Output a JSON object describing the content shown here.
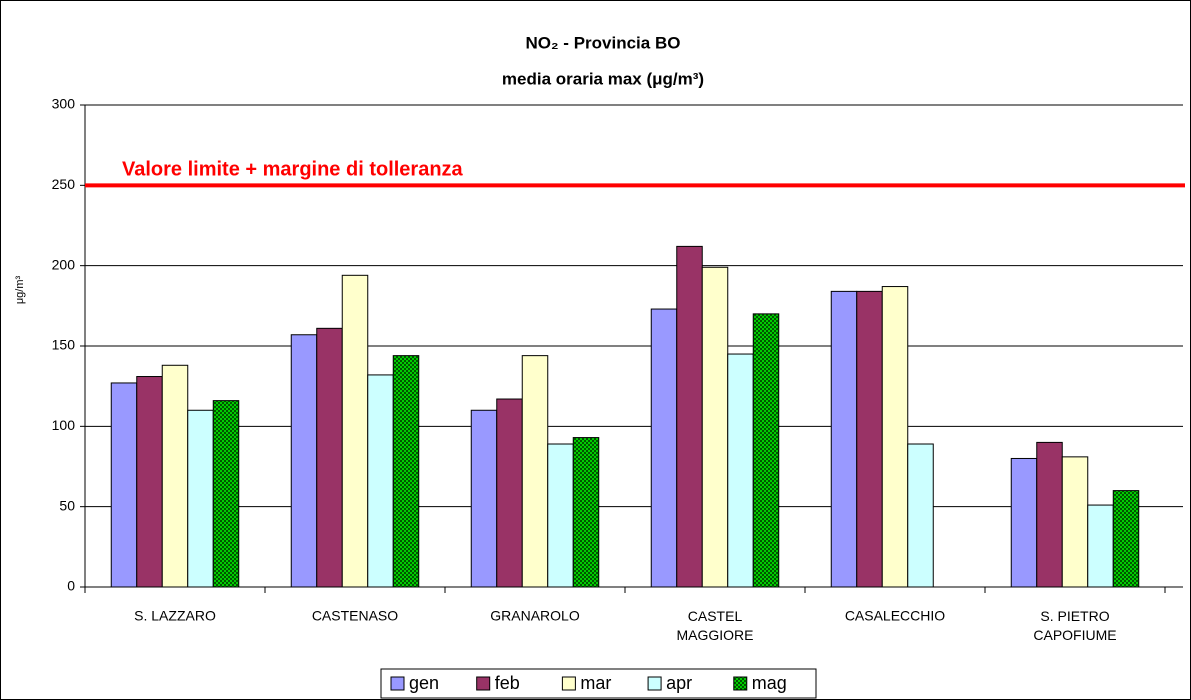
{
  "chart_data": {
    "type": "bar",
    "title": "NO₂ - Provincia BO",
    "subtitle": "media oraria max (μg/m³)",
    "y_label": "μg/m³",
    "categories": [
      "S. LAZZARO",
      "CASTENASO",
      "GRANAROLO",
      "CASTEL\nMAGGIORE",
      "CASALECCHIO",
      "S. PIETRO\nCAPOFIUME"
    ],
    "series": [
      {
        "name": "gen",
        "color": "#9999ff",
        "values": [
          127,
          157,
          110,
          173,
          184,
          80
        ]
      },
      {
        "name": "feb",
        "color": "#993366",
        "values": [
          131,
          161,
          117,
          212,
          184,
          90
        ]
      },
      {
        "name": "mar",
        "color": "#ffffcc",
        "values": [
          138,
          194,
          144,
          199,
          187,
          81
        ]
      },
      {
        "name": "apr",
        "color": "#ccffff",
        "values": [
          110,
          132,
          89,
          145,
          89,
          51
        ]
      },
      {
        "name": "mag",
        "color": "#00cc00",
        "values": [
          116,
          144,
          93,
          170,
          null,
          60
        ]
      }
    ],
    "reference_line": {
      "value": 250,
      "label": "Valore limite + margine di tolleranza",
      "color": "#ff0000"
    },
    "ylim": [
      0,
      300
    ],
    "yticks": [
      0,
      50,
      100,
      150,
      200,
      250,
      300
    ],
    "grid": true,
    "legend": "bottom"
  }
}
